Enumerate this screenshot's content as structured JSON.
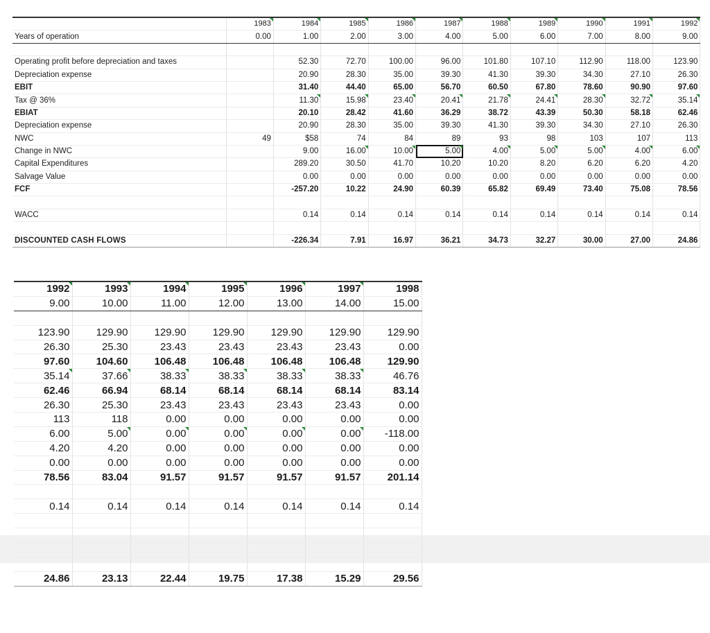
{
  "top": {
    "years": [
      "1983",
      "1984",
      "1985",
      "1986",
      "1987",
      "1988",
      "1989",
      "1990",
      "1991",
      "1992"
    ],
    "year_comments": [
      true,
      true,
      true,
      true,
      true,
      true,
      true,
      true,
      true,
      true
    ],
    "rows": [
      {
        "label": "Years of operation",
        "values": [
          "0.00",
          "1.00",
          "2.00",
          "3.00",
          "4.00",
          "5.00",
          "6.00",
          "7.00",
          "8.00",
          "9.00"
        ],
        "bold": false
      },
      {
        "label": "",
        "values": [
          "",
          "",
          "",
          "",
          "",
          "",
          "",
          "",
          "",
          ""
        ],
        "bold": false,
        "blank": true
      },
      {
        "label": "Operating profit before depreciation and taxes",
        "values": [
          "",
          "52.30",
          "72.70",
          "100.00",
          "96.00",
          "101.80",
          "107.10",
          "112.90",
          "118.00",
          "123.90"
        ],
        "bold": false
      },
      {
        "label": "Depreciation expense",
        "values": [
          "",
          "20.90",
          "28.30",
          "35.00",
          "39.30",
          "41.30",
          "39.30",
          "34.30",
          "27.10",
          "26.30"
        ],
        "bold": false
      },
      {
        "label": "EBIT",
        "values": [
          "",
          "31.40",
          "44.40",
          "65.00",
          "56.70",
          "60.50",
          "67.80",
          "78.60",
          "90.90",
          "97.60"
        ],
        "bold": true
      },
      {
        "label": "Tax @ 36%",
        "values": [
          "",
          "11.30",
          "15.98",
          "23.40",
          "20.41",
          "21.78",
          "24.41",
          "28.30",
          "32.72",
          "35.14"
        ],
        "bold": false
      },
      {
        "label": "EBIAT",
        "values": [
          "",
          "20.10",
          "28.42",
          "41.60",
          "36.29",
          "38.72",
          "43.39",
          "50.30",
          "58.18",
          "62.46"
        ],
        "bold": true
      },
      {
        "label": "Depreciation expense",
        "values": [
          "",
          "20.90",
          "28.30",
          "35.00",
          "39.30",
          "41.30",
          "39.30",
          "34.30",
          "27.10",
          "26.30"
        ],
        "bold": false
      },
      {
        "label": "NWC",
        "values": [
          "49",
          "$58",
          "74",
          "84",
          "89",
          "93",
          "98",
          "103",
          "107",
          "113"
        ],
        "bold": false
      },
      {
        "label": "Change in NWC",
        "values": [
          "",
          "9.00",
          "16.00",
          "10.00",
          "5.00",
          "4.00",
          "5.00",
          "5.00",
          "4.00",
          "6.00"
        ],
        "bold": false
      },
      {
        "label": "Capital Expenditures",
        "values": [
          "",
          "289.20",
          "30.50",
          "41.70",
          "10.20",
          "10.20",
          "8.20",
          "6.20",
          "6.20",
          "4.20"
        ],
        "bold": false
      },
      {
        "label": "Salvage Value",
        "values": [
          "",
          "0.00",
          "0.00",
          "0.00",
          "0.00",
          "0.00",
          "0.00",
          "0.00",
          "0.00",
          "0.00"
        ],
        "bold": false
      },
      {
        "label": "FCF",
        "values": [
          "",
          "-257.20",
          "10.22",
          "24.90",
          "60.39",
          "65.82",
          "69.49",
          "73.40",
          "75.08",
          "78.56"
        ],
        "bold": true
      },
      {
        "label": "",
        "values": [
          "",
          "",
          "",
          "",
          "",
          "",
          "",
          "",
          "",
          ""
        ],
        "bold": false,
        "blank": true
      },
      {
        "label": "WACC",
        "values": [
          "",
          "0.14",
          "0.14",
          "0.14",
          "0.14",
          "0.14",
          "0.14",
          "0.14",
          "0.14",
          "0.14"
        ],
        "bold": false
      },
      {
        "label": "",
        "values": [
          "",
          "",
          "",
          "",
          "",
          "",
          "",
          "",
          "",
          ""
        ],
        "bold": false,
        "blank": true
      },
      {
        "label": "DISCOUNTED CASH FLOWS",
        "values": [
          "",
          "-226.34",
          "7.91",
          "16.97",
          "36.21",
          "34.73",
          "32.27",
          "30.00",
          "27.00",
          "24.86"
        ],
        "bold": true,
        "dcf": true
      }
    ],
    "comments": {
      "5": [
        1,
        2,
        3,
        4,
        5,
        6,
        7,
        8,
        9
      ],
      "9": [
        2,
        3,
        4,
        5,
        6,
        7,
        8,
        9
      ]
    },
    "selected_cell": {
      "row": 9,
      "col": 4
    }
  },
  "bottom": {
    "years": [
      "1992",
      "1993",
      "1994",
      "1995",
      "1996",
      "1997",
      "1998"
    ],
    "rows": [
      {
        "values": [
          "9.00",
          "10.00",
          "11.00",
          "12.00",
          "13.00",
          "14.00",
          "15.00"
        ],
        "bold": false
      },
      {
        "values": [
          "",
          "",
          "",
          "",
          "",
          "",
          ""
        ],
        "blank": true
      },
      {
        "values": [
          "123.90",
          "129.90",
          "129.90",
          "129.90",
          "129.90",
          "129.90",
          "129.90"
        ],
        "bold": false
      },
      {
        "values": [
          "26.30",
          "25.30",
          "23.43",
          "23.43",
          "23.43",
          "23.43",
          "0.00"
        ],
        "bold": false
      },
      {
        "values": [
          "97.60",
          "104.60",
          "106.48",
          "106.48",
          "106.48",
          "106.48",
          "129.90"
        ],
        "bold": true
      },
      {
        "values": [
          "35.14",
          "37.66",
          "38.33",
          "38.33",
          "38.33",
          "38.33",
          "46.76"
        ],
        "bold": false
      },
      {
        "values": [
          "62.46",
          "66.94",
          "68.14",
          "68.14",
          "68.14",
          "68.14",
          "83.14"
        ],
        "bold": true
      },
      {
        "values": [
          "26.30",
          "25.30",
          "23.43",
          "23.43",
          "23.43",
          "23.43",
          "0.00"
        ],
        "bold": false
      },
      {
        "values": [
          "113",
          "118",
          "0.00",
          "0.00",
          "0.00",
          "0.00",
          "0.00"
        ],
        "bold": false
      },
      {
        "values": [
          "6.00",
          "5.00",
          "0.00",
          "0.00",
          "0.00",
          "0.00",
          "-118.00"
        ],
        "bold": false
      },
      {
        "values": [
          "4.20",
          "4.20",
          "0.00",
          "0.00",
          "0.00",
          "0.00",
          "0.00"
        ],
        "bold": false
      },
      {
        "values": [
          "0.00",
          "0.00",
          "0.00",
          "0.00",
          "0.00",
          "0.00",
          "0.00"
        ],
        "bold": false
      },
      {
        "values": [
          "78.56",
          "83.04",
          "91.57",
          "91.57",
          "91.57",
          "91.57",
          "201.14"
        ],
        "bold": true
      },
      {
        "values": [
          "",
          "",
          "",
          "",
          "",
          "",
          ""
        ],
        "blank": true
      },
      {
        "values": [
          "0.14",
          "0.14",
          "0.14",
          "0.14",
          "0.14",
          "0.14",
          "0.14"
        ],
        "bold": false
      },
      {
        "values": [
          "",
          "",
          "",
          "",
          "",
          "",
          ""
        ],
        "blank": true
      },
      {
        "values": [
          "",
          "",
          "",
          "",
          "",
          "",
          ""
        ],
        "blank": true
      },
      {
        "values": [
          "",
          "",
          "",
          "",
          "",
          "",
          ""
        ],
        "blank": true
      },
      {
        "values": [
          "",
          "",
          "",
          "",
          "",
          "",
          ""
        ],
        "blank": true
      },
      {
        "values": [
          "24.86",
          "23.13",
          "22.44",
          "19.75",
          "17.38",
          "15.29",
          "29.56"
        ],
        "bold": true,
        "dcf": true
      }
    ],
    "comments": {
      "5": [
        0,
        1,
        2,
        3,
        4,
        5
      ],
      "9": [
        1,
        2,
        3,
        4,
        5
      ]
    },
    "header_comments": [
      true,
      true,
      true,
      true,
      true,
      true,
      false
    ]
  },
  "colors": {
    "comment_marker": "#2e8b3e",
    "grid": "#e2e2e2",
    "header_rule": "#333333",
    "band": "#f1f1f1"
  }
}
